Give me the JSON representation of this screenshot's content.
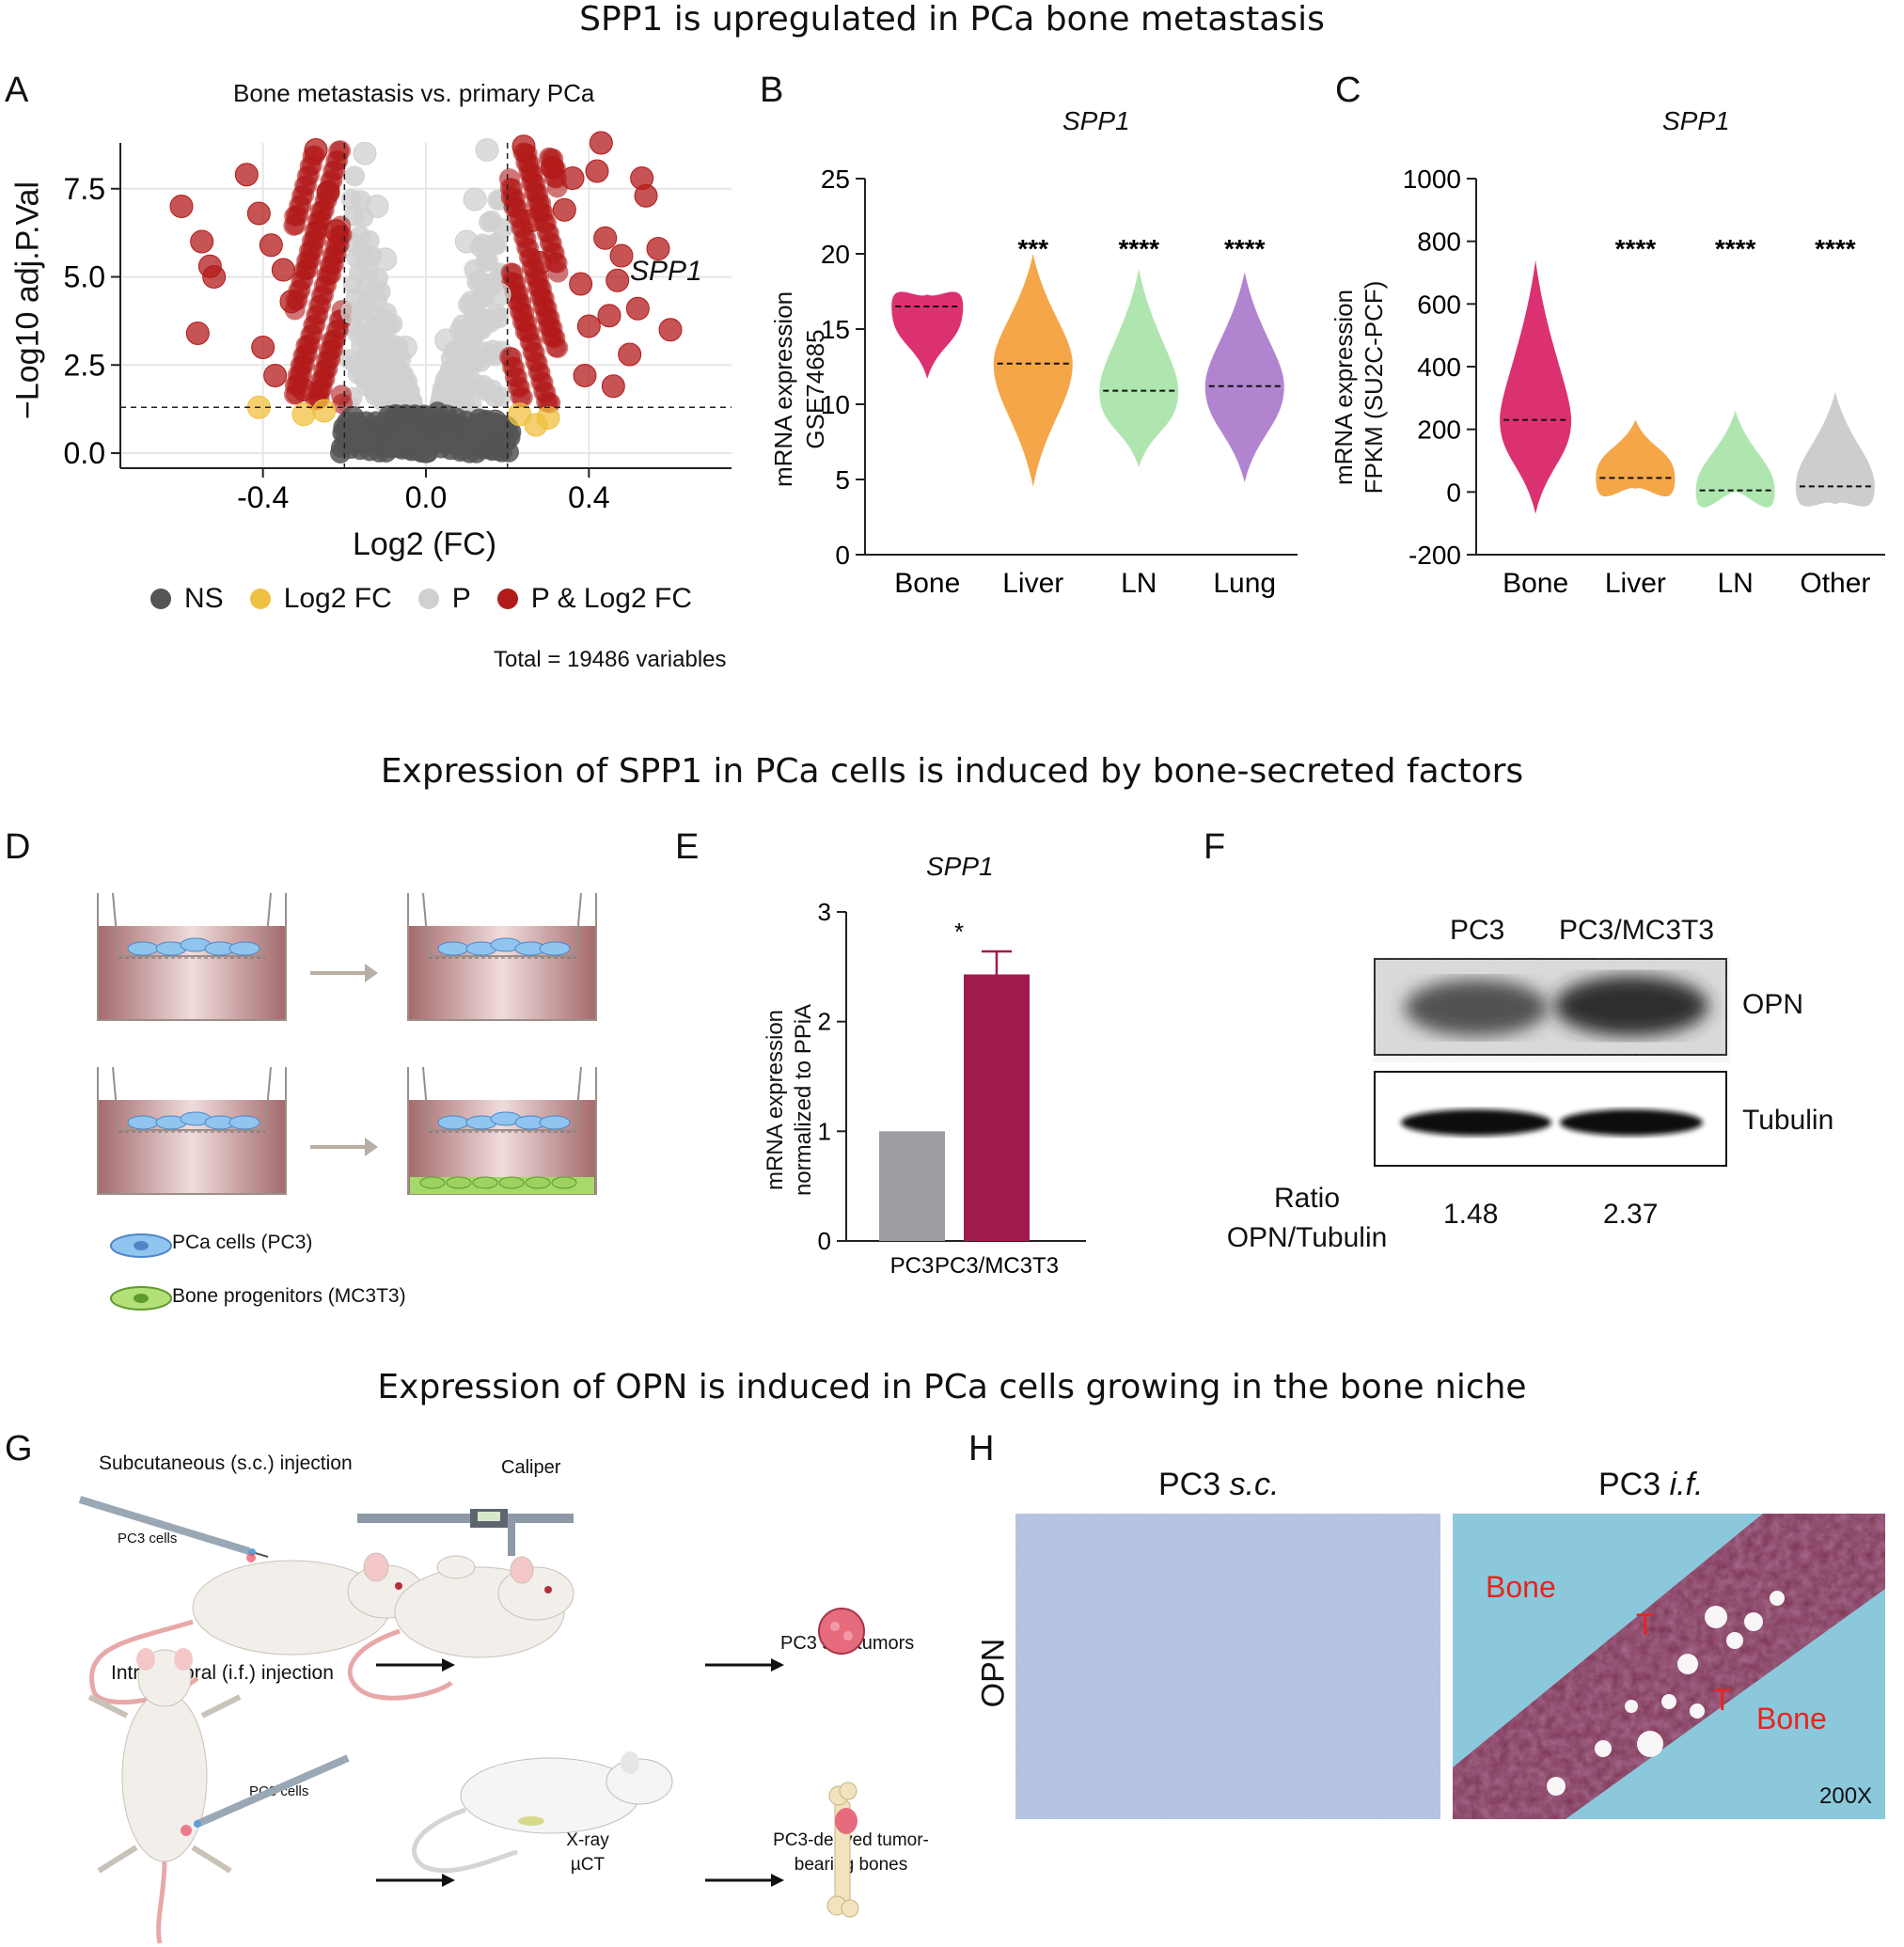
{
  "section_titles": {
    "top": "SPP1 is upregulated in PCa bone metastasis",
    "middle": "Expression of SPP1 in PCa cells is induced by bone-secreted factors",
    "bottom": "Expression of OPN is induced in PCa cells growing in the bone niche"
  },
  "panel_letters": [
    "A",
    "B",
    "C",
    "D",
    "E",
    "F",
    "G",
    "H"
  ],
  "colors": {
    "ns": "#555555",
    "log2fc": "#f0c040",
    "p": "#d0d0d0",
    "p_and_log2fc": "#b31b1b",
    "bone": "#d81b60",
    "liver": "#f39c34",
    "ln": "#a6e3a6",
    "lung": "#a777c9",
    "other": "#c8c8c8",
    "pc3_bar": "#9e9ea2",
    "pc3mc_bar": "#a11a4e"
  },
  "panelA": {
    "title": "Bone metastasis vs. primary PCa",
    "ylabel": "−Log10 adj.P.Val",
    "xlabel": "Log2 (FC)",
    "annotation": "SPP1",
    "legend": [
      "NS",
      "Log2 FC",
      "P",
      "P & Log2 FC"
    ],
    "total_text": "Total = 19486 variables",
    "chart_data": {
      "type": "scatter",
      "x_ticks": [
        "-0.4",
        "0.0",
        "0.4"
      ],
      "y_ticks": [
        "0.0",
        "2.5",
        "5.0",
        "7.5"
      ],
      "xlim": [
        -0.75,
        0.75
      ],
      "ylim": [
        0,
        8.8
      ],
      "fc_cutoff": [
        -0.2,
        0.2
      ],
      "p_cutoff": 1.3,
      "series": [
        {
          "name": "NS",
          "points": [
            [
              -0.15,
              0.4
            ],
            [
              -0.08,
              0.2
            ],
            [
              0.05,
              0.3
            ],
            [
              0.12,
              0.6
            ],
            [
              -0.18,
              1.0
            ],
            [
              0.17,
              0.9
            ],
            [
              0.0,
              0.05
            ],
            [
              -0.04,
              0.5
            ],
            [
              0.09,
              0.15
            ]
          ]
        },
        {
          "name": "Log2 FC",
          "points": [
            [
              -0.41,
              1.3
            ],
            [
              -0.3,
              1.1
            ],
            [
              -0.25,
              1.2
            ],
            [
              0.23,
              1.1
            ],
            [
              0.3,
              1.0
            ],
            [
              0.27,
              0.8
            ]
          ]
        },
        {
          "name": "P",
          "points": [
            [
              -0.15,
              8.5
            ],
            [
              -0.1,
              5.5
            ],
            [
              -0.05,
              3.0
            ],
            [
              0.05,
              3.2
            ],
            [
              0.1,
              6.0
            ],
            [
              0.15,
              8.6
            ],
            [
              -0.18,
              4.0
            ],
            [
              0.18,
              4.5
            ],
            [
              -0.12,
              7.0
            ],
            [
              0.12,
              7.2
            ]
          ]
        },
        {
          "name": "P & Log2 FC",
          "points": [
            [
              -0.6,
              7.0
            ],
            [
              -0.55,
              6.0
            ],
            [
              -0.53,
              5.3
            ],
            [
              -0.52,
              5.0
            ],
            [
              -0.56,
              3.4
            ],
            [
              -0.44,
              7.9
            ],
            [
              -0.41,
              6.8
            ],
            [
              -0.38,
              5.9
            ],
            [
              -0.35,
              5.2
            ],
            [
              -0.33,
              4.3
            ],
            [
              -0.4,
              3.0
            ],
            [
              -0.37,
              2.2
            ],
            [
              -0.3,
              1.8
            ],
            [
              -0.27,
              8.6
            ],
            [
              -0.24,
              7.4
            ],
            [
              -0.22,
              6.3
            ],
            [
              0.24,
              8.7
            ],
            [
              0.26,
              6.6
            ],
            [
              0.28,
              5.4
            ],
            [
              0.31,
              8.1
            ],
            [
              0.34,
              6.9
            ],
            [
              0.36,
              7.8
            ],
            [
              0.38,
              4.8
            ],
            [
              0.4,
              3.6
            ],
            [
              0.42,
              8.0
            ],
            [
              0.44,
              6.1
            ],
            [
              0.45,
              3.9
            ],
            [
              0.47,
              4.9
            ],
            [
              0.5,
              2.8
            ],
            [
              0.48,
              5.6
            ],
            [
              0.53,
              7.8
            ],
            [
              0.54,
              7.3
            ],
            [
              0.57,
              5.8
            ],
            [
              0.6,
              3.5
            ],
            [
              0.52,
              4.1
            ],
            [
              0.39,
              2.2
            ],
            [
              0.46,
              1.9
            ],
            [
              0.43,
              8.8
            ]
          ]
        }
      ]
    }
  },
  "panelB": {
    "title": "SPP1",
    "ylabel_line1": "mRNA expression",
    "ylabel_line2": "GSE74685",
    "chart_data": {
      "type": "violin",
      "categories": [
        "Bone",
        "Liver",
        "LN",
        "Lung"
      ],
      "medians": [
        16.5,
        12.7,
        10.9,
        11.2
      ],
      "ranges": [
        [
          11.7,
          17.3
        ],
        [
          4.5,
          20.0
        ],
        [
          5.8,
          19.0
        ],
        [
          4.8,
          18.8
        ]
      ],
      "significance": [
        "",
        "***",
        "****",
        "****"
      ],
      "y_ticks": [
        "0",
        "5",
        "10",
        "15",
        "20",
        "25"
      ],
      "ylim": [
        0,
        25
      ]
    }
  },
  "panelC": {
    "title": "SPP1",
    "ylabel_line1": "mRNA expression",
    "ylabel_line2": "FPKM (SU2C-PCF)",
    "chart_data": {
      "type": "violin",
      "categories": [
        "Bone",
        "Liver",
        "LN",
        "Other"
      ],
      "medians": [
        230,
        45,
        5,
        18
      ],
      "ranges": [
        [
          -70,
          740
        ],
        [
          10,
          230
        ],
        [
          0,
          260
        ],
        [
          -40,
          320
        ]
      ],
      "significance": [
        "",
        "****",
        "****",
        "****"
      ],
      "y_ticks": [
        "-200",
        "0",
        "200",
        "400",
        "600",
        "800",
        "1000"
      ],
      "ylim": [
        -200,
        1000
      ]
    }
  },
  "panelD": {
    "legend": [
      "PCa cells (PC3)",
      "Bone progenitors (MC3T3)"
    ]
  },
  "panelE": {
    "title": "SPP1",
    "ylabel_line1": "mRNA expression",
    "ylabel_line2": "normalized to PPiA",
    "significance": "*",
    "chart_data": {
      "type": "bar",
      "categories": [
        "PC3",
        "PC3/MC3T3"
      ],
      "values": [
        1.0,
        2.43
      ],
      "errors": [
        0.0,
        0.21
      ],
      "y_ticks": [
        "0",
        "1",
        "2",
        "3"
      ],
      "ylim": [
        0,
        3
      ]
    }
  },
  "panelF": {
    "columns": [
      "PC3",
      "PC3/MC3T3"
    ],
    "blots": [
      "OPN",
      "Tubulin"
    ],
    "ratio_label_line1": "Ratio",
    "ratio_label_line2": "OPN/Tubulin",
    "ratios": [
      "1.48",
      "2.37"
    ]
  },
  "panelG": {
    "sc_label": "Subcutaneous (s.c.) injection",
    "if_label": "Intrafemoral (i.f.) injection",
    "pc3_cells_1": "PC3 cells",
    "pc3_cells_2": "PC3 cells",
    "caliper": "Caliper",
    "sc_tumors": "PC3 s.c. tumors",
    "xray_line1": "X-ray",
    "xray_line2": "µCT",
    "bones_line1": "PC3-derived tumor-",
    "bones_line2": "bearing bones"
  },
  "panelH": {
    "left_title": "PC3 s.c.",
    "right_title": "PC3 i.f.",
    "row_label": "OPN",
    "bone1": "Bone",
    "bone2": "Bone",
    "t1": "T",
    "t2": "T",
    "magnification": "200X"
  }
}
